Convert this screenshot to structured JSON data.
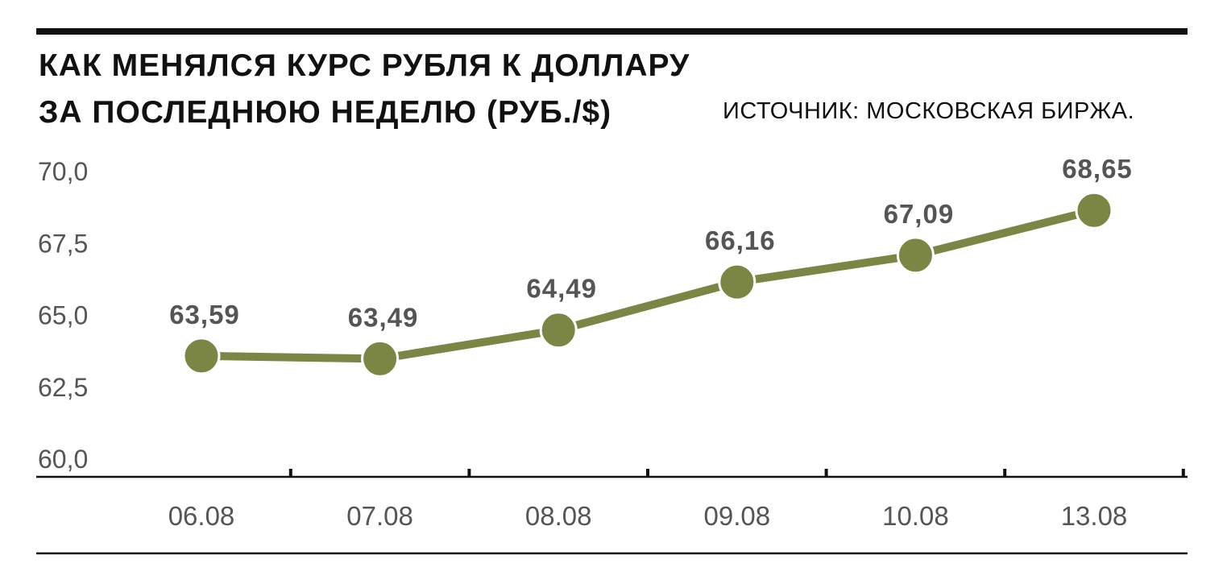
{
  "header": {
    "title_line1": "КАК МЕНЯЛСЯ КУРС РУБЛЯ К ДОЛЛАРУ",
    "title_line2": "ЗА ПОСЛЕДНЮЮ НЕДЕЛЮ (РУБ./$)",
    "source": "ИСТОЧНИК: МОСКОВСКАЯ БИРЖА."
  },
  "colors": {
    "series": "#7b8544",
    "axis": "#111111",
    "text": "#555555"
  },
  "chart_data": {
    "type": "line",
    "categories": [
      "06.08",
      "07.08",
      "08.08",
      "09.08",
      "10.08",
      "13.08"
    ],
    "values": [
      63.59,
      63.49,
      64.49,
      66.16,
      67.09,
      68.65
    ],
    "value_labels": [
      "63,59",
      "63,49",
      "64,49",
      "66,16",
      "67,09",
      "68,65"
    ],
    "yticks": [
      60.0,
      62.5,
      65.0,
      67.5,
      70.0
    ],
    "ytick_labels": [
      "60,0",
      "62,5",
      "65,0",
      "67,5",
      "70,0"
    ],
    "ylim": [
      60,
      70
    ],
    "grid": false,
    "legend": "none"
  }
}
